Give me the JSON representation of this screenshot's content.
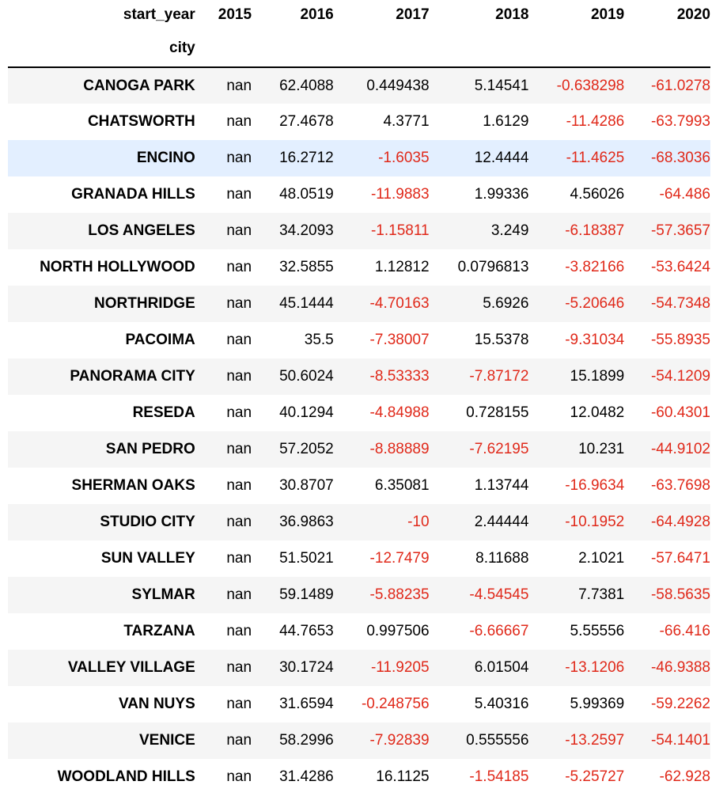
{
  "table": {
    "columns_name": "start_year",
    "index_name": "city",
    "columns": [
      "2015",
      "2016",
      "2017",
      "2018",
      "2019",
      "2020"
    ],
    "negative_color": "#e0291a",
    "positive_color": "#000000",
    "selected_row_color": "#e3efff",
    "rows": [
      {
        "city": "CANOGA PARK",
        "values": [
          "nan",
          "62.4088",
          "0.449438",
          "5.14541",
          "-0.638298",
          "-61.0278"
        ]
      },
      {
        "city": "CHATSWORTH",
        "values": [
          "nan",
          "27.4678",
          "4.3771",
          "1.6129",
          "-11.4286",
          "-63.7993"
        ]
      },
      {
        "city": "ENCINO",
        "values": [
          "nan",
          "16.2712",
          "-1.6035",
          "12.4444",
          "-11.4625",
          "-68.3036"
        ],
        "selected": true
      },
      {
        "city": "GRANADA HILLS",
        "values": [
          "nan",
          "48.0519",
          "-11.9883",
          "1.99336",
          "4.56026",
          "-64.486"
        ]
      },
      {
        "city": "LOS ANGELES",
        "values": [
          "nan",
          "34.2093",
          "-1.15811",
          "3.249",
          "-6.18387",
          "-57.3657"
        ]
      },
      {
        "city": "NORTH HOLLYWOOD",
        "values": [
          "nan",
          "32.5855",
          "1.12812",
          "0.0796813",
          "-3.82166",
          "-53.6424"
        ]
      },
      {
        "city": "NORTHRIDGE",
        "values": [
          "nan",
          "45.1444",
          "-4.70163",
          "5.6926",
          "-5.20646",
          "-54.7348"
        ]
      },
      {
        "city": "PACOIMA",
        "values": [
          "nan",
          "35.5",
          "-7.38007",
          "15.5378",
          "-9.31034",
          "-55.8935"
        ]
      },
      {
        "city": "PANORAMA CITY",
        "values": [
          "nan",
          "50.6024",
          "-8.53333",
          "-7.87172",
          "15.1899",
          "-54.1209"
        ]
      },
      {
        "city": "RESEDA",
        "values": [
          "nan",
          "40.1294",
          "-4.84988",
          "0.728155",
          "12.0482",
          "-60.4301"
        ]
      },
      {
        "city": "SAN PEDRO",
        "values": [
          "nan",
          "57.2052",
          "-8.88889",
          "-7.62195",
          "10.231",
          "-44.9102"
        ]
      },
      {
        "city": "SHERMAN OAKS",
        "values": [
          "nan",
          "30.8707",
          "6.35081",
          "1.13744",
          "-16.9634",
          "-63.7698"
        ]
      },
      {
        "city": "STUDIO CITY",
        "values": [
          "nan",
          "36.9863",
          "-10",
          "2.44444",
          "-10.1952",
          "-64.4928"
        ]
      },
      {
        "city": "SUN VALLEY",
        "values": [
          "nan",
          "51.5021",
          "-12.7479",
          "8.11688",
          "2.1021",
          "-57.6471"
        ]
      },
      {
        "city": "SYLMAR",
        "values": [
          "nan",
          "59.1489",
          "-5.88235",
          "-4.54545",
          "7.7381",
          "-58.5635"
        ]
      },
      {
        "city": "TARZANA",
        "values": [
          "nan",
          "44.7653",
          "0.997506",
          "-6.66667",
          "5.55556",
          "-66.416"
        ]
      },
      {
        "city": "VALLEY VILLAGE",
        "values": [
          "nan",
          "30.1724",
          "-11.9205",
          "6.01504",
          "-13.1206",
          "-46.9388"
        ]
      },
      {
        "city": "VAN NUYS",
        "values": [
          "nan",
          "31.6594",
          "-0.248756",
          "5.40316",
          "5.99369",
          "-59.2262"
        ]
      },
      {
        "city": "VENICE",
        "values": [
          "nan",
          "58.2996",
          "-7.92839",
          "0.555556",
          "-13.2597",
          "-54.1401"
        ]
      },
      {
        "city": "WOODLAND HILLS",
        "values": [
          "nan",
          "31.4286",
          "16.1125",
          "-1.54185",
          "-5.25727",
          "-62.928"
        ]
      }
    ]
  }
}
